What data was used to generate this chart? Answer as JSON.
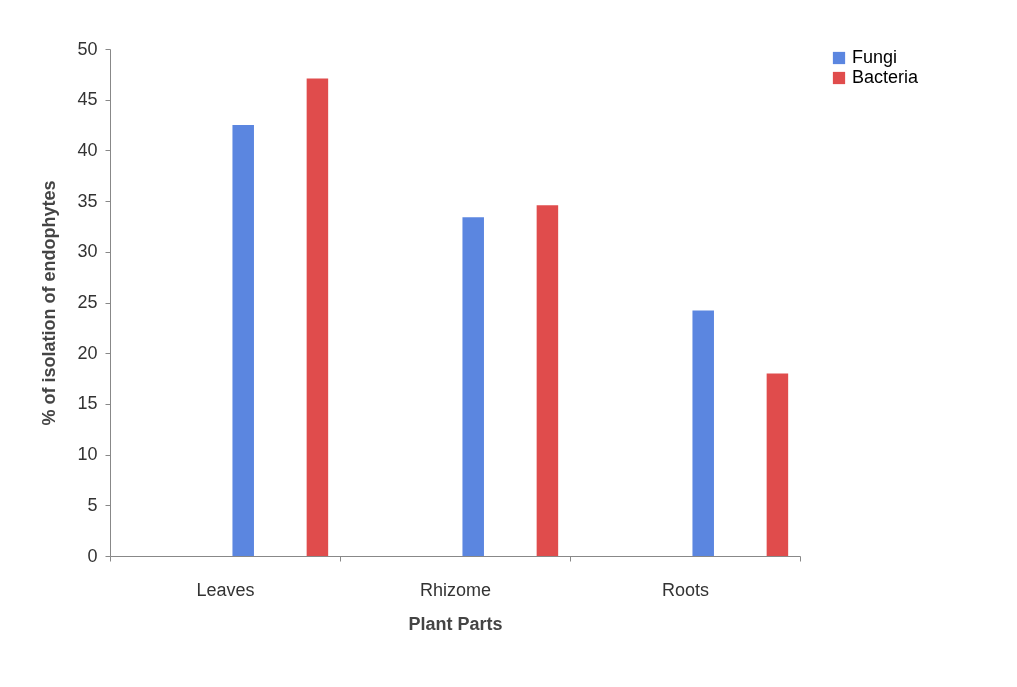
{
  "chart_data": {
    "type": "bar",
    "xlabel": "Plant Parts",
    "ylabel": "% of isolation of endophytes",
    "categories": [
      "Leaves",
      "Rhizome",
      "Roots"
    ],
    "series": [
      {
        "name": "Fungi",
        "color": "#5b86e0",
        "values": [
          42.5,
          33.4,
          24.2
        ]
      },
      {
        "name": "Bacteria",
        "color": "#e04c4c",
        "values": [
          47.1,
          34.6,
          18
        ]
      }
    ],
    "ylim": [
      0,
      50
    ],
    "yticks": [
      0,
      5,
      10,
      15,
      20,
      25,
      30,
      35,
      40,
      45,
      50
    ],
    "grid": false,
    "legend": "right"
  }
}
